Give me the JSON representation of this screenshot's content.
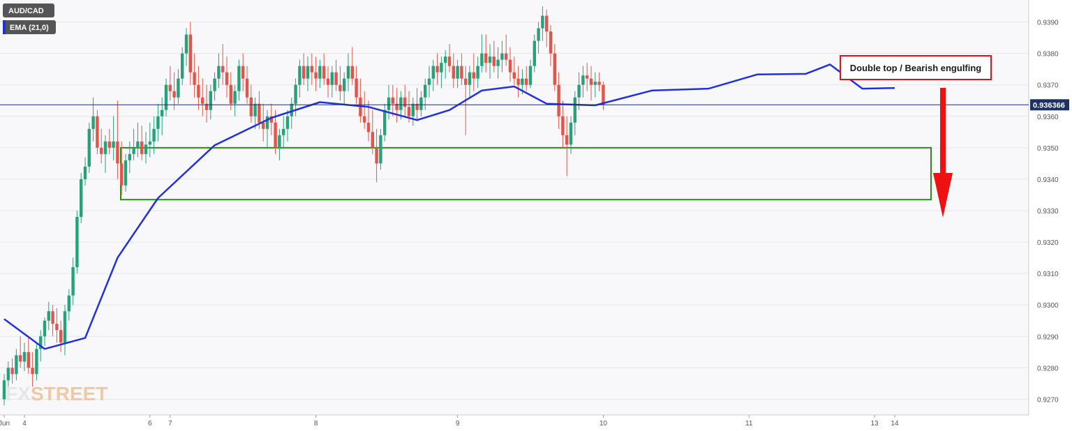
{
  "header": {
    "symbol": "AUD/CAD",
    "indicator": "EMA (21,0)"
  },
  "colors": {
    "up": "#26a17a",
    "down": "#e0564b",
    "ema": "#1f30e0",
    "box": "#2c8a1a",
    "arrow": "#ee1111",
    "annotation_border": "#e0101b",
    "price_badge": "#1c3166",
    "grid": "#e6e6e6",
    "background": "#ffffff",
    "plot_background": "#f8f8fa"
  },
  "annotation": {
    "text": "Double top / Bearish engulfing"
  },
  "watermark": {
    "fx": "FX",
    "street": "STREET"
  },
  "chart_data": {
    "type": "candlestick",
    "symbol": "AUD/CAD",
    "timeframe_hint": "hourly",
    "ylim": [
      0.9265,
      0.9397
    ],
    "y_ticks": [
      "0.9390",
      "0.9380",
      "0.9370",
      "0.9360",
      "0.9350",
      "0.9340",
      "0.9330",
      "0.9320",
      "0.9310",
      "0.9300",
      "0.9290",
      "0.9280",
      "0.9270"
    ],
    "x_tick_labels": [
      "Jun",
      "4",
      "6",
      "7",
      "8",
      "9",
      "10",
      "11",
      "13",
      "14"
    ],
    "last_price_label": "0.936366",
    "last_price": 0.936366,
    "support_zone": {
      "low": 0.93335,
      "high": 0.935,
      "from_candle": 30,
      "to_extends_past_last": true
    },
    "ema_label": "EMA (21,0)",
    "ema_points": [
      [
        0,
        0.92955
      ],
      [
        10,
        0.9286
      ],
      [
        20,
        0.92895
      ],
      [
        28,
        0.9315
      ],
      [
        38,
        0.9334
      ],
      [
        52,
        0.93508
      ],
      [
        66,
        0.93595
      ],
      [
        78,
        0.93645
      ],
      [
        90,
        0.9363
      ],
      [
        102,
        0.93588
      ],
      [
        110,
        0.9362
      ],
      [
        118,
        0.93682
      ],
      [
        126,
        0.93695
      ],
      [
        134,
        0.9364
      ],
      [
        146,
        0.93635
      ],
      [
        160,
        0.93682
      ],
      [
        174,
        0.93688
      ],
      [
        186,
        0.93733
      ],
      [
        198,
        0.93735
      ],
      [
        204,
        0.93765
      ],
      [
        212,
        0.93688
      ],
      [
        220,
        0.9369
      ]
    ],
    "candles": [
      [
        0.927,
        0.9278,
        0.9268,
        0.9276
      ],
      [
        0.9276,
        0.9282,
        0.9274,
        0.928
      ],
      [
        0.928,
        0.9283,
        0.9275,
        0.9278
      ],
      [
        0.9278,
        0.9286,
        0.9276,
        0.9284
      ],
      [
        0.9284,
        0.929,
        0.928,
        0.9282
      ],
      [
        0.9282,
        0.9288,
        0.9279,
        0.9285
      ],
      [
        0.9285,
        0.929,
        0.9278,
        0.928
      ],
      [
        0.928,
        0.9285,
        0.9274,
        0.9278
      ],
      [
        0.9278,
        0.9288,
        0.9276,
        0.9286
      ],
      [
        0.9286,
        0.9292,
        0.9282,
        0.929
      ],
      [
        0.929,
        0.9296,
        0.9287,
        0.9295
      ],
      [
        0.9295,
        0.9301,
        0.9292,
        0.9298
      ],
      [
        0.9298,
        0.93,
        0.929,
        0.9294
      ],
      [
        0.9294,
        0.9299,
        0.9288,
        0.9292
      ],
      [
        0.9292,
        0.9295,
        0.9285,
        0.9288
      ],
      [
        0.9288,
        0.93,
        0.9284,
        0.9298
      ],
      [
        0.9298,
        0.9305,
        0.9295,
        0.9303
      ],
      [
        0.9303,
        0.9315,
        0.93,
        0.9312
      ],
      [
        0.9312,
        0.933,
        0.931,
        0.9328
      ],
      [
        0.9328,
        0.9342,
        0.9326,
        0.934
      ],
      [
        0.934,
        0.9347,
        0.9338,
        0.9344
      ],
      [
        0.9344,
        0.9358,
        0.9342,
        0.9356
      ],
      [
        0.9356,
        0.9366,
        0.9352,
        0.936
      ],
      [
        0.936,
        0.9362,
        0.9348,
        0.935
      ],
      [
        0.935,
        0.9356,
        0.9345,
        0.9348
      ],
      [
        0.9348,
        0.9354,
        0.9342,
        0.9352
      ],
      [
        0.9352,
        0.9356,
        0.9348,
        0.935
      ],
      [
        0.935,
        0.936,
        0.9346,
        0.9352
      ],
      [
        0.9352,
        0.9365,
        0.934,
        0.9345
      ],
      [
        0.9345,
        0.9352,
        0.9335,
        0.9338
      ],
      [
        0.9338,
        0.9348,
        0.9336,
        0.9346
      ],
      [
        0.9346,
        0.9352,
        0.9342,
        0.9348
      ],
      [
        0.9348,
        0.9356,
        0.9346,
        0.935
      ],
      [
        0.935,
        0.9358,
        0.9347,
        0.9352
      ],
      [
        0.9352,
        0.9357,
        0.9346,
        0.9348
      ],
      [
        0.9348,
        0.9355,
        0.9345,
        0.9351
      ],
      [
        0.9351,
        0.9358,
        0.9347,
        0.9352
      ],
      [
        0.9352,
        0.936,
        0.9348,
        0.9356
      ],
      [
        0.9356,
        0.9364,
        0.9352,
        0.936
      ],
      [
        0.936,
        0.9366,
        0.9354,
        0.9362
      ],
      [
        0.9362,
        0.9372,
        0.936,
        0.937
      ],
      [
        0.937,
        0.9376,
        0.9365,
        0.9368
      ],
      [
        0.9368,
        0.9374,
        0.9362,
        0.9366
      ],
      [
        0.9366,
        0.9375,
        0.9364,
        0.9372
      ],
      [
        0.9372,
        0.9382,
        0.937,
        0.938
      ],
      [
        0.938,
        0.9388,
        0.9376,
        0.9386
      ],
      [
        0.9386,
        0.939,
        0.937,
        0.9374
      ],
      [
        0.9374,
        0.938,
        0.9366,
        0.937
      ],
      [
        0.937,
        0.9376,
        0.9362,
        0.9366
      ],
      [
        0.9366,
        0.9372,
        0.936,
        0.9364
      ],
      [
        0.9364,
        0.937,
        0.9358,
        0.9362
      ],
      [
        0.9362,
        0.937,
        0.9359,
        0.9368
      ],
      [
        0.9368,
        0.9374,
        0.9365,
        0.9372
      ],
      [
        0.9372,
        0.938,
        0.9369,
        0.9376
      ],
      [
        0.9376,
        0.9383,
        0.937,
        0.9374
      ],
      [
        0.9374,
        0.9379,
        0.9366,
        0.937
      ],
      [
        0.937,
        0.9374,
        0.9362,
        0.9364
      ],
      [
        0.9364,
        0.937,
        0.936,
        0.9368
      ],
      [
        0.9368,
        0.9378,
        0.9365,
        0.9376
      ],
      [
        0.9376,
        0.938,
        0.9368,
        0.9372
      ],
      [
        0.9372,
        0.9376,
        0.9364,
        0.9366
      ],
      [
        0.9366,
        0.937,
        0.9358,
        0.936
      ],
      [
        0.936,
        0.9366,
        0.9356,
        0.9364
      ],
      [
        0.9364,
        0.9368,
        0.9356,
        0.9358
      ],
      [
        0.9358,
        0.9364,
        0.9352,
        0.9356
      ],
      [
        0.9356,
        0.9362,
        0.935,
        0.936
      ],
      [
        0.936,
        0.9364,
        0.9354,
        0.9358
      ],
      [
        0.9358,
        0.9362,
        0.9348,
        0.935
      ],
      [
        0.935,
        0.9356,
        0.9346,
        0.9354
      ],
      [
        0.9354,
        0.936,
        0.935,
        0.9356
      ],
      [
        0.9356,
        0.9362,
        0.9352,
        0.936
      ],
      [
        0.936,
        0.9366,
        0.9356,
        0.9364
      ],
      [
        0.9364,
        0.9372,
        0.936,
        0.937
      ],
      [
        0.937,
        0.9378,
        0.9366,
        0.9376
      ],
      [
        0.9376,
        0.938,
        0.937,
        0.9372
      ],
      [
        0.9372,
        0.9379,
        0.9368,
        0.9376
      ],
      [
        0.9376,
        0.938,
        0.937,
        0.9374
      ],
      [
        0.9374,
        0.9379,
        0.9368,
        0.9372
      ],
      [
        0.9372,
        0.9378,
        0.9369,
        0.9376
      ],
      [
        0.9376,
        0.938,
        0.937,
        0.9372
      ],
      [
        0.9372,
        0.9376,
        0.9366,
        0.937
      ],
      [
        0.937,
        0.9376,
        0.9366,
        0.9374
      ],
      [
        0.9374,
        0.9378,
        0.9368,
        0.937
      ],
      [
        0.937,
        0.9376,
        0.9365,
        0.9368
      ],
      [
        0.9368,
        0.9374,
        0.9364,
        0.9372
      ],
      [
        0.9372,
        0.938,
        0.9368,
        0.9376
      ],
      [
        0.9376,
        0.9382,
        0.937,
        0.9372
      ],
      [
        0.9372,
        0.9376,
        0.9364,
        0.9366
      ],
      [
        0.9366,
        0.9372,
        0.9358,
        0.936
      ],
      [
        0.936,
        0.9368,
        0.9356,
        0.9358
      ],
      [
        0.9358,
        0.9365,
        0.9352,
        0.9355
      ],
      [
        0.9355,
        0.9362,
        0.9348,
        0.935
      ],
      [
        0.935,
        0.9356,
        0.9339,
        0.9345
      ],
      [
        0.9345,
        0.9356,
        0.9343,
        0.9354
      ],
      [
        0.9354,
        0.9364,
        0.9352,
        0.9362
      ],
      [
        0.9362,
        0.937,
        0.9359,
        0.9366
      ],
      [
        0.9366,
        0.937,
        0.936,
        0.9364
      ],
      [
        0.9364,
        0.9369,
        0.9358,
        0.9362
      ],
      [
        0.9362,
        0.9368,
        0.9359,
        0.9366
      ],
      [
        0.9366,
        0.937,
        0.936,
        0.9363
      ],
      [
        0.9363,
        0.9368,
        0.9358,
        0.936
      ],
      [
        0.936,
        0.9366,
        0.9357,
        0.9364
      ],
      [
        0.9364,
        0.9369,
        0.9359,
        0.9362
      ],
      [
        0.9362,
        0.9368,
        0.936,
        0.9366
      ],
      [
        0.9366,
        0.9372,
        0.9362,
        0.937
      ],
      [
        0.937,
        0.9376,
        0.9366,
        0.9372
      ],
      [
        0.9372,
        0.9378,
        0.9368,
        0.9376
      ],
      [
        0.9376,
        0.938,
        0.937,
        0.9374
      ],
      [
        0.9374,
        0.9379,
        0.9369,
        0.9377
      ],
      [
        0.9377,
        0.9381,
        0.9372,
        0.9379
      ],
      [
        0.9379,
        0.9383,
        0.9374,
        0.9376
      ],
      [
        0.9376,
        0.938,
        0.9369,
        0.9372
      ],
      [
        0.9372,
        0.9378,
        0.9369,
        0.9376
      ],
      [
        0.9376,
        0.938,
        0.937,
        0.9372
      ],
      [
        0.9372,
        0.9376,
        0.9354,
        0.937
      ],
      [
        0.937,
        0.9376,
        0.9366,
        0.9374
      ],
      [
        0.9374,
        0.938,
        0.9368,
        0.9372
      ],
      [
        0.9372,
        0.9379,
        0.9369,
        0.9376
      ],
      [
        0.9376,
        0.9386,
        0.9374,
        0.938
      ],
      [
        0.938,
        0.9386,
        0.9374,
        0.9377
      ],
      [
        0.9377,
        0.9383,
        0.9372,
        0.9379
      ],
      [
        0.9379,
        0.9384,
        0.9374,
        0.9376
      ],
      [
        0.9376,
        0.9382,
        0.9372,
        0.9378
      ],
      [
        0.9378,
        0.9384,
        0.9374,
        0.938
      ],
      [
        0.938,
        0.9386,
        0.9376,
        0.9378
      ],
      [
        0.9378,
        0.9382,
        0.9371,
        0.9374
      ],
      [
        0.9374,
        0.9379,
        0.937,
        0.9372
      ],
      [
        0.9372,
        0.9376,
        0.9366,
        0.937
      ],
      [
        0.937,
        0.9375,
        0.9367,
        0.9372
      ],
      [
        0.9372,
        0.9376,
        0.9368,
        0.937
      ],
      [
        0.937,
        0.9378,
        0.9369,
        0.9376
      ],
      [
        0.9376,
        0.9386,
        0.9374,
        0.9384
      ],
      [
        0.9384,
        0.939,
        0.938,
        0.9388
      ],
      [
        0.9388,
        0.9395,
        0.9384,
        0.9392
      ],
      [
        0.9392,
        0.9394,
        0.9382,
        0.9387
      ],
      [
        0.9387,
        0.9389,
        0.9376,
        0.938
      ],
      [
        0.938,
        0.9383,
        0.9368,
        0.937
      ],
      [
        0.937,
        0.9374,
        0.9356,
        0.936
      ],
      [
        0.936,
        0.9365,
        0.935,
        0.9354
      ],
      [
        0.9354,
        0.936,
        0.9341,
        0.9351
      ],
      [
        0.9351,
        0.936,
        0.9348,
        0.9358
      ],
      [
        0.9358,
        0.9368,
        0.9354,
        0.9366
      ],
      [
        0.9366,
        0.9374,
        0.9362,
        0.937
      ],
      [
        0.937,
        0.9376,
        0.9366,
        0.9373
      ],
      [
        0.9373,
        0.9377,
        0.9368,
        0.9372
      ],
      [
        0.9372,
        0.9376,
        0.9365,
        0.937
      ],
      [
        0.937,
        0.9374,
        0.9366,
        0.9371
      ],
      [
        0.9371,
        0.9374,
        0.9368,
        0.937
      ],
      [
        0.937,
        0.9371,
        0.9362,
        0.93636
      ]
    ]
  }
}
